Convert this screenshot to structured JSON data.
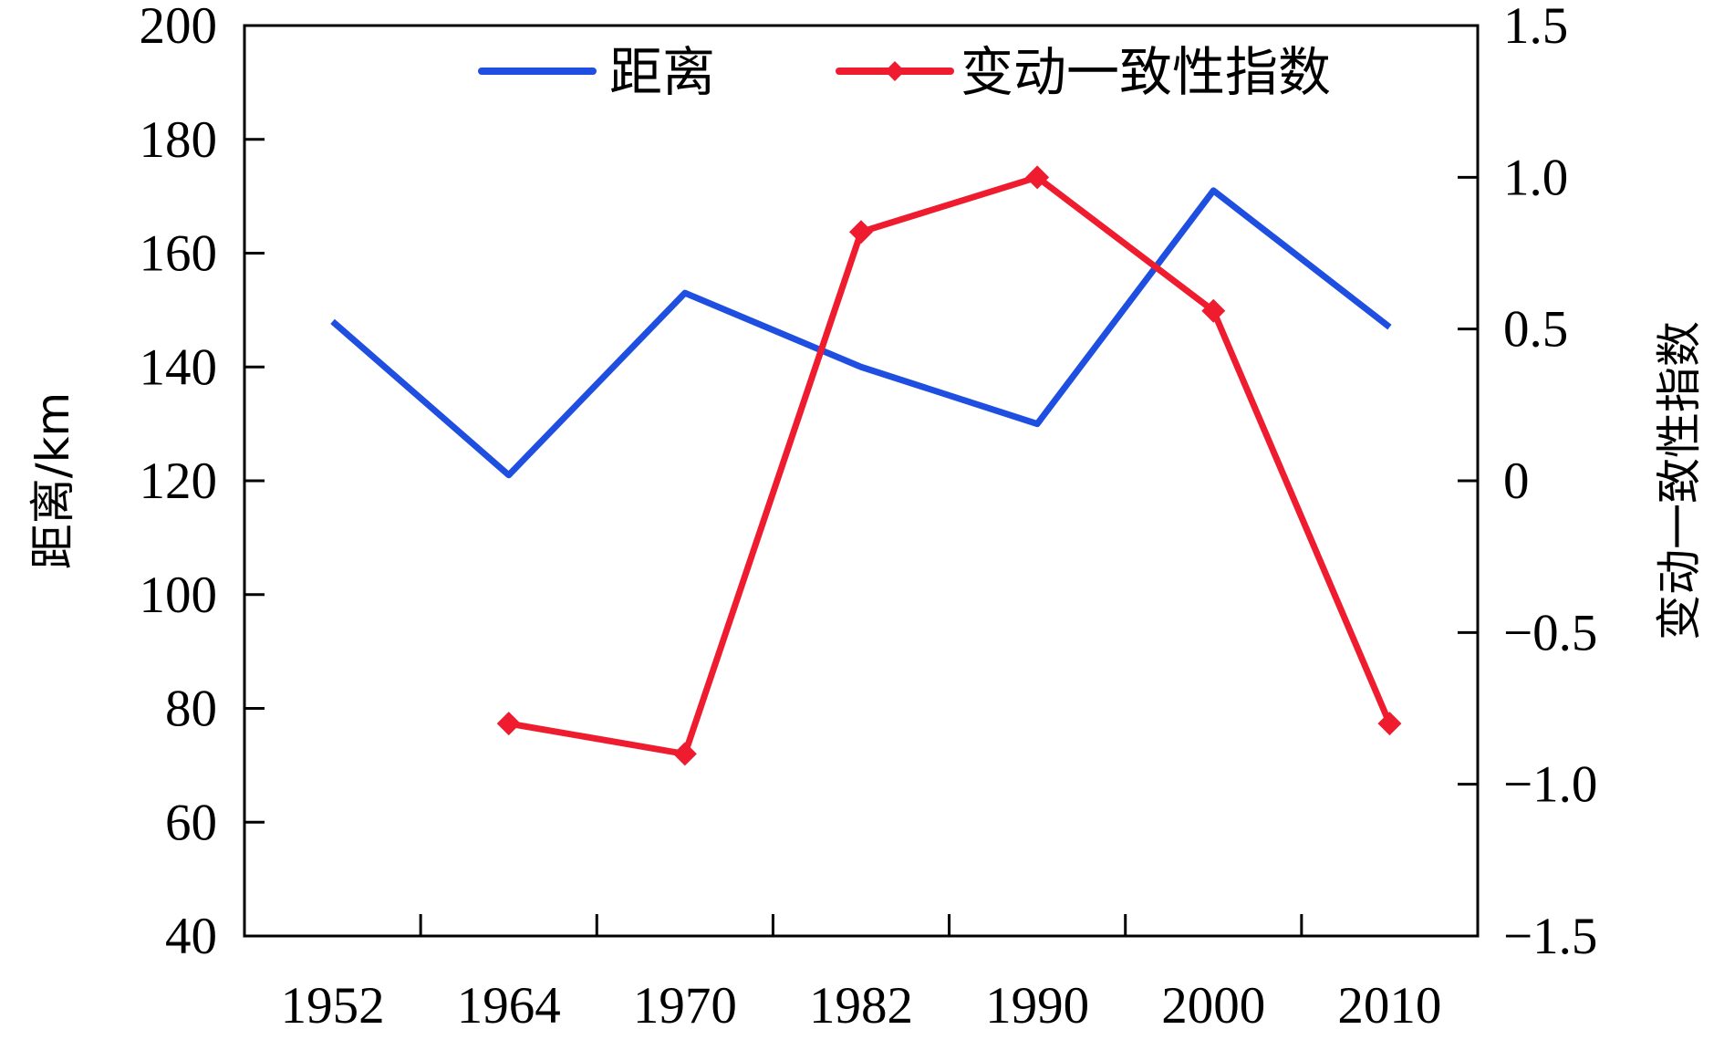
{
  "chart_data": {
    "type": "line",
    "x_axis": {
      "categories": [
        "1952",
        "1964",
        "1970",
        "1982",
        "1990",
        "2000",
        "2010"
      ]
    },
    "y_axis_left": {
      "label": "距离/km",
      "range": [
        40,
        200
      ],
      "ticks": [
        40,
        60,
        80,
        100,
        120,
        140,
        160,
        180,
        200
      ],
      "tick_labels": [
        "40",
        "60",
        "80",
        "100",
        "120",
        "140",
        "160",
        "180",
        "200"
      ]
    },
    "y_axis_right": {
      "label": "变动一致性指数",
      "range": [
        -1.5,
        1.5
      ],
      "ticks": [
        -1.5,
        -1.0,
        -0.5,
        0,
        0.5,
        1.0,
        1.5
      ],
      "tick_labels": [
        "−1.5",
        "−1.0",
        "−0.5",
        "0",
        "0.5",
        "1.0",
        "1.5"
      ]
    },
    "series": [
      {
        "name": "距离",
        "axis": "left",
        "color": "#1f4fe0",
        "marker": "none",
        "values": [
          148,
          121,
          153,
          140,
          130,
          171,
          147
        ]
      },
      {
        "name": "变动一致性指数",
        "axis": "right",
        "color": "#ee1c2e",
        "marker": "diamond",
        "values": [
          null,
          -0.8,
          -0.9,
          0.82,
          1.0,
          0.56,
          -0.8
        ]
      }
    ],
    "legend": {
      "position": "top-center"
    },
    "grid": false
  }
}
